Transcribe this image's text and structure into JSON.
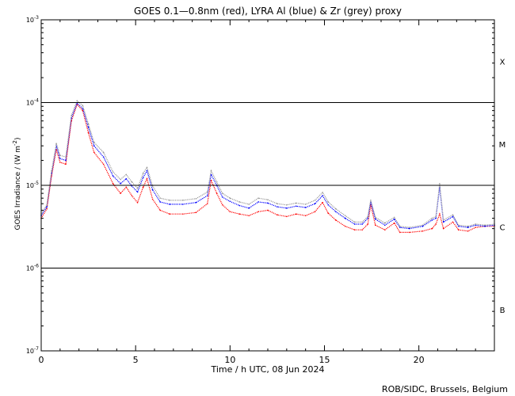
{
  "chart_data": {
    "type": "line",
    "title": "GOES 0.1—0.8nm (red), LYRA Al (blue) & Zr (grey) proxy",
    "xlabel": "Time / h UTC, 08 Jun 2024",
    "ylabel": "GOES Irradiance / (W m",
    "ylabel_sup": "-2",
    "ylabel_close": ")",
    "credit": "ROB/SIDC, Brussels, Belgium",
    "xlim": [
      0,
      24
    ],
    "ylim": [
      1e-07,
      0.001
    ],
    "y_scale": "log",
    "x_ticks": [
      {
        "value": 0,
        "label": "0"
      },
      {
        "value": 5,
        "label": "5"
      },
      {
        "value": 10,
        "label": "10"
      },
      {
        "value": 15,
        "label": "15"
      },
      {
        "value": 20,
        "label": "20"
      }
    ],
    "y_ticks": [
      {
        "exp": -3,
        "base": "10",
        "sup": "-3"
      },
      {
        "exp": -4,
        "base": "10",
        "sup": "-4"
      },
      {
        "exp": -5,
        "base": "10",
        "sup": "-5"
      },
      {
        "exp": -6,
        "base": "10",
        "sup": "-6"
      },
      {
        "exp": -7,
        "base": "10",
        "sup": "-7"
      }
    ],
    "flare_class_lines": [
      0.0001,
      1e-05,
      1e-06
    ],
    "flare_classes": [
      {
        "label": "X",
        "exp": -3.5
      },
      {
        "label": "M",
        "exp": -4.5
      },
      {
        "label": "C",
        "exp": -5.5
      },
      {
        "label": "B",
        "exp": -6.5
      }
    ],
    "series": [
      {
        "name": "GOES 0.1—0.8nm",
        "color": "#ff0000",
        "points": [
          [
            0,
            4e-06
          ],
          [
            0.3,
            5.2e-06
          ],
          [
            0.55,
            1.3e-05
          ],
          [
            0.8,
            2.7e-05
          ],
          [
            1.0,
            1.9e-05
          ],
          [
            1.3,
            1.8e-05
          ],
          [
            1.6,
            6e-05
          ],
          [
            1.9,
            9.5e-05
          ],
          [
            2.2,
            8e-05
          ],
          [
            2.5,
            4.3e-05
          ],
          [
            2.8,
            2.5e-05
          ],
          [
            3.3,
            1.8e-05
          ],
          [
            3.8,
            1.05e-05
          ],
          [
            4.2,
            8e-06
          ],
          [
            4.5,
            9.5e-06
          ],
          [
            4.8,
            7.5e-06
          ],
          [
            5.1,
            6.2e-06
          ],
          [
            5.4,
            9.5e-06
          ],
          [
            5.6,
            1.2e-05
          ],
          [
            5.9,
            6.8e-06
          ],
          [
            6.3,
            5e-06
          ],
          [
            6.8,
            4.5e-06
          ],
          [
            7.5,
            4.5e-06
          ],
          [
            8.2,
            4.7e-06
          ],
          [
            8.8,
            6e-06
          ],
          [
            9.0,
            1.15e-05
          ],
          [
            9.3,
            8e-06
          ],
          [
            9.6,
            5.8e-06
          ],
          [
            10.0,
            4.8e-06
          ],
          [
            10.5,
            4.5e-06
          ],
          [
            11.0,
            4.3e-06
          ],
          [
            11.5,
            4.8e-06
          ],
          [
            12.0,
            5e-06
          ],
          [
            12.5,
            4.4e-06
          ],
          [
            13.0,
            4.2e-06
          ],
          [
            13.5,
            4.5e-06
          ],
          [
            14.0,
            4.3e-06
          ],
          [
            14.5,
            4.8e-06
          ],
          [
            14.9,
            6.2e-06
          ],
          [
            15.2,
            4.6e-06
          ],
          [
            15.6,
            3.8e-06
          ],
          [
            16.1,
            3.2e-06
          ],
          [
            16.6,
            2.9e-06
          ],
          [
            17.0,
            2.9e-06
          ],
          [
            17.3,
            3.4e-06
          ],
          [
            17.45,
            5.8e-06
          ],
          [
            17.7,
            3.3e-06
          ],
          [
            18.2,
            2.9e-06
          ],
          [
            18.7,
            3.5e-06
          ],
          [
            19.0,
            2.7e-06
          ],
          [
            19.5,
            2.7e-06
          ],
          [
            20.2,
            2.8e-06
          ],
          [
            20.7,
            3e-06
          ],
          [
            20.9,
            3.4e-06
          ],
          [
            21.1,
            4.5e-06
          ],
          [
            21.3,
            3e-06
          ],
          [
            21.8,
            3.6e-06
          ],
          [
            22.1,
            2.9e-06
          ],
          [
            22.6,
            2.8e-06
          ],
          [
            23.0,
            3.1e-06
          ],
          [
            23.5,
            3.2e-06
          ],
          [
            24.0,
            3.2e-06
          ]
        ]
      },
      {
        "name": "LYRA Al",
        "color": "#0000ff",
        "points": [
          [
            0,
            4.3e-06
          ],
          [
            0.3,
            5.5e-06
          ],
          [
            0.55,
            1.4e-05
          ],
          [
            0.8,
            3e-05
          ],
          [
            1.0,
            2.1e-05
          ],
          [
            1.3,
            2e-05
          ],
          [
            1.6,
            6.5e-05
          ],
          [
            1.9,
            9.8e-05
          ],
          [
            2.2,
            8.5e-05
          ],
          [
            2.5,
            5e-05
          ],
          [
            2.8,
            3e-05
          ],
          [
            3.3,
            2.2e-05
          ],
          [
            3.8,
            1.3e-05
          ],
          [
            4.2,
            1.05e-05
          ],
          [
            4.5,
            1.2e-05
          ],
          [
            4.8,
            9.8e-06
          ],
          [
            5.1,
            8.3e-06
          ],
          [
            5.4,
            1.25e-05
          ],
          [
            5.6,
            1.5e-05
          ],
          [
            5.9,
            8.8e-06
          ],
          [
            6.3,
            6.3e-06
          ],
          [
            6.8,
            5.9e-06
          ],
          [
            7.5,
            5.9e-06
          ],
          [
            8.2,
            6.2e-06
          ],
          [
            8.8,
            7.5e-06
          ],
          [
            9.0,
            1.35e-05
          ],
          [
            9.3,
            1e-05
          ],
          [
            9.6,
            7.2e-06
          ],
          [
            10.0,
            6.4e-06
          ],
          [
            10.5,
            5.7e-06
          ],
          [
            11.0,
            5.3e-06
          ],
          [
            11.5,
            6.3e-06
          ],
          [
            12.0,
            6.1e-06
          ],
          [
            12.5,
            5.5e-06
          ],
          [
            13.0,
            5.3e-06
          ],
          [
            13.5,
            5.6e-06
          ],
          [
            14.0,
            5.4e-06
          ],
          [
            14.5,
            6e-06
          ],
          [
            14.9,
            7.5e-06
          ],
          [
            15.2,
            5.8e-06
          ],
          [
            15.6,
            4.8e-06
          ],
          [
            16.1,
            4e-06
          ],
          [
            16.6,
            3.4e-06
          ],
          [
            17.0,
            3.4e-06
          ],
          [
            17.3,
            4e-06
          ],
          [
            17.45,
            6.3e-06
          ],
          [
            17.7,
            3.9e-06
          ],
          [
            18.2,
            3.3e-06
          ],
          [
            18.7,
            3.9e-06
          ],
          [
            19.0,
            3.1e-06
          ],
          [
            19.5,
            3e-06
          ],
          [
            20.2,
            3.2e-06
          ],
          [
            20.7,
            3.8e-06
          ],
          [
            20.9,
            4e-06
          ],
          [
            21.1,
            9.5e-06
          ],
          [
            21.3,
            3.6e-06
          ],
          [
            21.8,
            4.2e-06
          ],
          [
            22.1,
            3.2e-06
          ],
          [
            22.6,
            3.1e-06
          ],
          [
            23.0,
            3.3e-06
          ],
          [
            23.5,
            3.2e-06
          ],
          [
            24.0,
            3.3e-06
          ]
        ]
      },
      {
        "name": "Zr",
        "color": "#999999",
        "points": [
          [
            0,
            4.5e-06
          ],
          [
            0.3,
            5.8e-06
          ],
          [
            0.55,
            1.5e-05
          ],
          [
            0.8,
            3.2e-05
          ],
          [
            1.0,
            2.3e-05
          ],
          [
            1.3,
            2.2e-05
          ],
          [
            1.6,
            7e-05
          ],
          [
            1.9,
            0.000105
          ],
          [
            2.2,
            9.2e-05
          ],
          [
            2.5,
            5.5e-05
          ],
          [
            2.8,
            3.3e-05
          ],
          [
            3.3,
            2.5e-05
          ],
          [
            3.8,
            1.45e-05
          ],
          [
            4.2,
            1.18e-05
          ],
          [
            4.5,
            1.35e-05
          ],
          [
            4.8,
            1.1e-05
          ],
          [
            5.1,
            9.2e-06
          ],
          [
            5.4,
            1.4e-05
          ],
          [
            5.6,
            1.65e-05
          ],
          [
            5.9,
            9.8e-06
          ],
          [
            6.3,
            7e-06
          ],
          [
            6.8,
            6.6e-06
          ],
          [
            7.5,
            6.6e-06
          ],
          [
            8.2,
            6.9e-06
          ],
          [
            8.8,
            8.3e-06
          ],
          [
            9.0,
            1.5e-05
          ],
          [
            9.3,
            1.1e-05
          ],
          [
            9.6,
            8e-06
          ],
          [
            10.0,
            7e-06
          ],
          [
            10.5,
            6.3e-06
          ],
          [
            11.0,
            5.9e-06
          ],
          [
            11.5,
            7e-06
          ],
          [
            12.0,
            6.7e-06
          ],
          [
            12.5,
            6e-06
          ],
          [
            13.0,
            5.8e-06
          ],
          [
            13.5,
            6.1e-06
          ],
          [
            14.0,
            5.9e-06
          ],
          [
            14.5,
            6.6e-06
          ],
          [
            14.9,
            8.2e-06
          ],
          [
            15.2,
            6.3e-06
          ],
          [
            15.6,
            5.2e-06
          ],
          [
            16.1,
            4.3e-06
          ],
          [
            16.6,
            3.6e-06
          ],
          [
            17.0,
            3.6e-06
          ],
          [
            17.3,
            4.2e-06
          ],
          [
            17.45,
            6.6e-06
          ],
          [
            17.7,
            4.1e-06
          ],
          [
            18.2,
            3.5e-06
          ],
          [
            18.7,
            4.1e-06
          ],
          [
            19.0,
            3.2e-06
          ],
          [
            19.5,
            3.1e-06
          ],
          [
            20.2,
            3.3e-06
          ],
          [
            20.7,
            4e-06
          ],
          [
            20.9,
            4.2e-06
          ],
          [
            21.1,
            1.05e-05
          ],
          [
            21.3,
            3.8e-06
          ],
          [
            21.8,
            4.4e-06
          ],
          [
            22.1,
            3.3e-06
          ],
          [
            22.6,
            3.2e-06
          ],
          [
            23.0,
            3.4e-06
          ],
          [
            23.5,
            3.3e-06
          ],
          [
            24.0,
            3.4e-06
          ]
        ]
      }
    ]
  }
}
